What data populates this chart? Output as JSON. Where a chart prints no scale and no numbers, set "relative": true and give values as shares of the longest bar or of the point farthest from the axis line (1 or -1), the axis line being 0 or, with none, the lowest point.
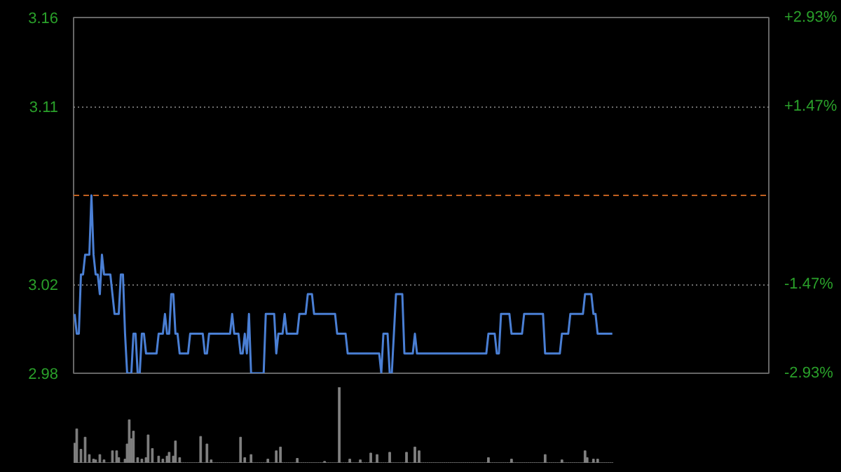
{
  "chart_data": [
    {
      "type": "line",
      "color": "#4a7fd4",
      "ylim": [
        2.98,
        3.16
      ],
      "y2lim": [
        -2.93,
        2.93
      ],
      "grid": "y",
      "tick_labels": "y",
      "yticks": [
        2.98,
        {
          "value": 3.025,
          "label": "3.02"
        },
        {
          "value": 3.115,
          "label": "3.11"
        },
        3.16
      ],
      "y2ticks": [
        {
          "value": -2.93,
          "label": "-2.93%"
        },
        {
          "value": -1.47,
          "label": "-1.47%"
        },
        {
          "value": 1.47,
          "label": "+1.47%"
        },
        {
          "value": 2.93,
          "label": "+2.93%"
        }
      ],
      "ref_lines": [
        {
          "axis": "y",
          "value": 3.07,
          "color": "#c06020",
          "line_style": "dashed"
        }
      ],
      "categories": [
        null,
        null,
        null,
        null,
        null,
        null,
        null,
        null,
        null,
        null,
        null,
        null,
        null,
        null,
        null,
        null,
        null,
        null,
        null,
        null,
        null,
        null,
        null,
        null,
        null,
        null,
        null,
        null,
        null,
        null,
        null,
        null,
        null,
        null,
        null,
        null,
        null,
        null,
        null,
        null,
        null,
        null,
        null,
        null,
        null,
        null,
        null,
        null,
        null,
        null,
        null,
        null,
        null,
        null,
        null,
        null,
        null,
        null,
        null,
        null,
        null,
        null,
        null,
        null,
        null,
        null,
        null,
        null,
        null,
        null,
        null,
        null,
        null,
        null,
        null,
        null,
        null,
        null,
        null,
        null,
        null,
        null,
        null,
        null,
        null,
        null,
        null,
        null,
        null,
        null,
        null,
        null,
        null,
        null,
        null,
        null,
        null,
        null,
        null,
        null,
        null,
        null,
        null,
        null,
        null,
        null,
        null,
        null,
        null,
        null,
        null,
        null,
        null,
        null,
        null,
        null,
        null,
        null,
        null,
        null,
        null,
        null,
        null,
        null,
        null,
        null,
        null,
        null,
        null,
        null,
        null,
        null,
        null,
        null,
        null,
        null,
        null,
        null,
        null,
        null,
        null,
        null,
        null,
        null,
        null,
        null,
        null,
        null,
        null,
        null,
        null,
        null,
        null,
        null,
        null,
        null,
        null,
        null,
        null,
        null,
        null,
        null,
        null,
        null,
        null,
        null,
        null,
        null,
        null,
        null,
        null,
        null,
        null,
        null,
        null,
        null,
        null,
        null,
        null,
        null,
        null,
        null,
        null,
        null,
        null,
        null,
        null,
        null,
        null,
        null,
        null,
        null,
        null,
        null,
        null,
        null,
        null,
        null,
        null,
        null,
        null,
        null,
        null,
        null,
        null,
        null,
        null,
        null,
        null,
        null,
        null,
        null,
        null,
        null,
        null,
        null,
        null,
        null,
        null,
        null,
        null,
        null,
        null,
        null,
        null,
        null,
        null,
        null,
        null,
        null,
        null,
        null,
        null,
        null,
        null,
        null,
        null,
        null,
        null,
        null,
        null,
        null,
        null,
        null,
        null,
        null,
        null,
        null,
        null,
        null,
        null,
        null,
        null,
        null,
        null,
        null,
        null,
        null,
        null,
        null,
        null,
        null,
        null,
        null,
        null,
        null,
        null,
        null,
        null,
        null,
        null,
        null,
        null,
        null,
        null,
        null,
        null,
        null,
        null,
        null,
        null,
        null,
        null,
        null,
        null,
        null,
        null,
        null,
        null,
        null,
        null,
        null,
        null,
        null,
        null,
        null,
        null,
        null,
        null,
        null,
        null,
        null,
        null,
        null,
        null,
        null,
        null,
        null,
        null,
        null,
        null,
        null,
        null,
        null,
        null,
        null,
        null,
        null,
        null,
        null,
        null,
        null,
        null,
        null,
        null,
        null,
        null,
        null,
        null,
        null,
        null
      ],
      "values": [
        3.01,
        3.0,
        3.0,
        3.03,
        3.03,
        3.04,
        3.04,
        3.04,
        3.07,
        3.04,
        3.03,
        3.03,
        3.02,
        3.04,
        3.03,
        3.03,
        3.03,
        3.03,
        3.02,
        3.01,
        3.01,
        3.01,
        3.03,
        3.03,
        3.0,
        2.98,
        2.98,
        2.98,
        3.0,
        3.0,
        2.98,
        2.98,
        3.0,
        3.0,
        2.99,
        2.99,
        2.99,
        2.99,
        2.99,
        2.99,
        3.0,
        3.0,
        3.0,
        3.01,
        3.0,
        3.0,
        3.02,
        3.02,
        3.0,
        3.0,
        2.99,
        2.99,
        2.99,
        2.99,
        2.99,
        3.0,
        3.0,
        3.0,
        3.0,
        3.0,
        3.0,
        3.0,
        2.99,
        2.99,
        3.0,
        3.0,
        3.0,
        3.0,
        3.0,
        3.0,
        3.0,
        3.0,
        3.0,
        3.0,
        3.0,
        3.01,
        3.0,
        3.0,
        3.0,
        2.99,
        2.99,
        3.0,
        2.99,
        3.01,
        2.98,
        2.98,
        2.98,
        2.98,
        2.98,
        2.98,
        2.98,
        3.01,
        3.01,
        3.01,
        3.01,
        3.01,
        2.99,
        3.0,
        3.0,
        3.0,
        3.01,
        3.0,
        3.0,
        3.0,
        3.0,
        3.0,
        3.0,
        3.01,
        3.01,
        3.01,
        3.01,
        3.02,
        3.02,
        3.02,
        3.01,
        3.01,
        3.01,
        3.01,
        3.01,
        3.01,
        3.01,
        3.01,
        3.01,
        3.01,
        3.01,
        3.0,
        3.0,
        3.0,
        3.0,
        3.0,
        2.99,
        2.99,
        2.99,
        2.99,
        2.99,
        2.99,
        2.99,
        2.99,
        2.99,
        2.99,
        2.99,
        2.99,
        2.99,
        2.99,
        2.99,
        2.99,
        2.98,
        3.0,
        3.0,
        3.0,
        2.98,
        2.98,
        3.0,
        3.02,
        3.02,
        3.02,
        3.02,
        2.99,
        2.99,
        2.99,
        2.99,
        2.99,
        3.0,
        2.99,
        2.99,
        2.99,
        2.99,
        2.99,
        2.99,
        2.99,
        2.99,
        2.99,
        2.99,
        2.99,
        2.99,
        2.99,
        2.99,
        2.99,
        2.99,
        2.99,
        2.99,
        2.99,
        2.99,
        2.99,
        2.99,
        2.99,
        2.99,
        2.99,
        2.99,
        2.99,
        2.99,
        2.99,
        2.99,
        2.99,
        2.99,
        2.99,
        2.99,
        3.0,
        3.0,
        3.0,
        3.0,
        2.99,
        2.99,
        3.01,
        3.01,
        3.01,
        3.01,
        3.01,
        3.0,
        3.0,
        3.0,
        3.0,
        3.0,
        3.0,
        3.01,
        3.01,
        3.01,
        3.01,
        3.01,
        3.01,
        3.01,
        3.01,
        3.01,
        3.01,
        2.99,
        2.99,
        2.99,
        2.99,
        2.99,
        2.99,
        2.99,
        2.99,
        3.0,
        3.0,
        3.0,
        3.0,
        3.01,
        3.01,
        3.01,
        3.01,
        3.01,
        3.01,
        3.01,
        3.02,
        3.02,
        3.02,
        3.02,
        3.01,
        3.01,
        3.0,
        3.0,
        3.0,
        3.0,
        3.0,
        3.0,
        3.0,
        3.0,
        null,
        null,
        null,
        null,
        null,
        null,
        null,
        null,
        null,
        null,
        null,
        null,
        null,
        null,
        null,
        null,
        null,
        null,
        null,
        null,
        null,
        null,
        null,
        null,
        null,
        null,
        null,
        null,
        null,
        null,
        null,
        null,
        null,
        null,
        null,
        null,
        null,
        null,
        null,
        null,
        null,
        null,
        null,
        null,
        null,
        null,
        null,
        null,
        null,
        null,
        null,
        null,
        null,
        null,
        null,
        null,
        null,
        null,
        null,
        null,
        null,
        null,
        null,
        null,
        null,
        null,
        null,
        null,
        null,
        null,
        null,
        null,
        null,
        null
      ]
    },
    {
      "type": "bar",
      "color": "#808080",
      "relative": true,
      "categories": [
        null,
        null,
        null,
        null,
        null,
        null,
        null,
        null,
        null,
        null,
        null,
        null,
        null,
        null,
        null,
        null,
        null,
        null,
        null,
        null,
        null,
        null,
        null,
        null,
        null,
        null,
        null,
        null,
        null,
        null,
        null,
        null,
        null,
        null,
        null,
        null,
        null,
        null,
        null,
        null,
        null,
        null,
        null,
        null,
        null,
        null,
        null,
        null,
        null,
        null,
        null,
        null,
        null,
        null,
        null,
        null,
        null,
        null,
        null,
        null,
        null,
        null,
        null,
        null,
        null,
        null,
        null,
        null,
        null,
        null,
        null,
        null,
        null,
        null,
        null,
        null,
        null,
        null,
        null,
        null,
        null,
        null,
        null,
        null,
        null,
        null,
        null,
        null,
        null,
        null,
        null,
        null,
        null,
        null,
        null,
        null,
        null,
        null,
        null,
        null,
        null,
        null,
        null,
        null,
        null,
        null,
        null,
        null,
        null,
        null,
        null,
        null,
        null,
        null,
        null,
        null,
        null,
        null,
        null,
        null,
        null,
        null,
        null,
        null,
        null,
        null,
        null,
        null,
        null,
        null,
        null,
        null,
        null,
        null,
        null,
        null,
        null,
        null,
        null,
        null,
        null,
        null,
        null,
        null,
        null,
        null,
        null,
        null,
        null,
        null,
        null,
        null,
        null,
        null,
        null,
        null,
        null,
        null,
        null,
        null,
        null,
        null,
        null,
        null,
        null,
        null,
        null,
        null,
        null,
        null,
        null,
        null,
        null,
        null,
        null,
        null,
        null,
        null,
        null,
        null,
        null,
        null,
        null,
        null,
        null,
        null,
        null,
        null,
        null,
        null,
        null,
        null,
        null,
        null,
        null,
        null,
        null,
        null,
        null,
        null,
        null,
        null,
        null,
        null,
        null,
        null,
        null,
        null,
        null,
        null,
        null,
        null,
        null,
        null,
        null,
        null,
        null,
        null,
        null,
        null,
        null,
        null,
        null,
        null,
        null,
        null,
        null,
        null,
        null,
        null,
        null,
        null,
        null,
        null,
        null,
        null,
        null,
        null,
        null,
        null,
        null,
        null,
        null,
        null,
        null,
        null,
        null,
        null,
        null,
        null,
        null,
        null,
        null,
        null,
        null,
        null,
        null,
        null,
        null,
        null,
        null,
        null,
        null,
        null,
        null,
        null,
        null,
        null,
        null,
        null,
        null,
        null,
        null,
        null,
        null,
        null,
        null,
        null,
        null,
        null,
        null,
        null,
        null,
        null,
        null,
        null,
        null,
        null,
        null,
        null,
        null,
        null,
        null,
        null,
        null,
        null,
        null,
        null,
        null,
        null,
        null,
        null,
        null,
        null,
        null,
        null,
        null,
        null,
        null,
        null,
        null,
        null,
        null,
        null,
        null,
        null,
        null,
        null,
        null,
        null,
        null,
        null,
        null,
        null,
        null,
        null,
        null,
        null,
        null,
        null,
        null
      ],
      "values": [
        0.26,
        0.45,
        0,
        0.18,
        0,
        0.34,
        0,
        0.11,
        0,
        0.05,
        0.04,
        0,
        0.11,
        0,
        0.04,
        0,
        0,
        0,
        0.16,
        0,
        0.16,
        0.07,
        0,
        0,
        0.05,
        0.25,
        0.57,
        0.32,
        0.42,
        0,
        0.07,
        0,
        0.05,
        0,
        0.07,
        0.37,
        0,
        0.19,
        0,
        0,
        0.09,
        0,
        0.05,
        0,
        0.09,
        0.14,
        0,
        0.09,
        0.29,
        0,
        0.07,
        0,
        0,
        0,
        0,
        0,
        0,
        0,
        0,
        0,
        0.35,
        0,
        0,
        0.25,
        0,
        0.04,
        0,
        0,
        0,
        0,
        0,
        0,
        0,
        0,
        0,
        0,
        0,
        0,
        0,
        0.34,
        0,
        0.07,
        0,
        0,
        0.11,
        0,
        0,
        0,
        0,
        0,
        0,
        0,
        0.05,
        0,
        0,
        0,
        0.16,
        0,
        0.21,
        0,
        0,
        0,
        0,
        0,
        0,
        0,
        0.06,
        0,
        0,
        0,
        0,
        0,
        0,
        0,
        0,
        0,
        0,
        0,
        0,
        0.02,
        0,
        0,
        0,
        0,
        0,
        0,
        1.0,
        0,
        0,
        0,
        0,
        0.05,
        0,
        0,
        0,
        0,
        0.04,
        0,
        0,
        0,
        0,
        0.13,
        0,
        0,
        0.11,
        0,
        0,
        0,
        0,
        0,
        0.14,
        0,
        0,
        0,
        0,
        0,
        0,
        0,
        0.14,
        0,
        0,
        0,
        0.21,
        0,
        0.16,
        0,
        0,
        0,
        0,
        0,
        0,
        0,
        0,
        0,
        0,
        0,
        0,
        0,
        0,
        0,
        0,
        0,
        0,
        0,
        0,
        0,
        0,
        0,
        0,
        0,
        0,
        0,
        0,
        0,
        0,
        0,
        0,
        0.07,
        0,
        0,
        0,
        0,
        0,
        0,
        0,
        0,
        0,
        0,
        0.05,
        0,
        0,
        0,
        0,
        0,
        0,
        0,
        0,
        0,
        0,
        0,
        0,
        0,
        0,
        0,
        0.11,
        0,
        0,
        0,
        0,
        0,
        0,
        0,
        0.04,
        0,
        0,
        0,
        0,
        0,
        0,
        0,
        0,
        0,
        0,
        0.16,
        0.07,
        0,
        0,
        0.05,
        0,
        0.05,
        0,
        0,
        0,
        0,
        0,
        0,
        0,
        null,
        null,
        null,
        null,
        null,
        null,
        null,
        null,
        null,
        null,
        null,
        null,
        null,
        null,
        null,
        null,
        null,
        null,
        null,
        null,
        null,
        null,
        null,
        null,
        null,
        null,
        null,
        null,
        null,
        null,
        null,
        null,
        null,
        null,
        null,
        null,
        null,
        null,
        null,
        null,
        null,
        null,
        null,
        null,
        null,
        null,
        null,
        null,
        null,
        null,
        null,
        null,
        null,
        null,
        null,
        null,
        null,
        null,
        null,
        null,
        null,
        null,
        null,
        null,
        null,
        null,
        null,
        null,
        null,
        null,
        null,
        null,
        null,
        null
      ]
    }
  ]
}
